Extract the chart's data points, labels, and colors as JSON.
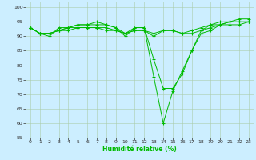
{
  "title": "",
  "xlabel": "Humidité relative (%)",
  "ylabel": "",
  "background_color": "#cceeff",
  "grid_color": "#aaccaa",
  "line_color": "#00bb00",
  "marker": "+",
  "xlim": [
    -0.5,
    23.5
  ],
  "ylim": [
    55,
    102
  ],
  "yticks": [
    55,
    60,
    65,
    70,
    75,
    80,
    85,
    90,
    95,
    100
  ],
  "xticks": [
    0,
    1,
    2,
    3,
    4,
    5,
    6,
    7,
    8,
    9,
    10,
    11,
    12,
    13,
    14,
    15,
    16,
    17,
    18,
    19,
    20,
    21,
    22,
    23
  ],
  "series": [
    [
      93,
      91,
      90,
      93,
      93,
      94,
      94,
      94,
      94,
      93,
      90,
      93,
      93,
      76,
      60,
      71,
      78,
      85,
      91,
      92,
      94,
      95,
      96,
      96
    ],
    [
      93,
      91,
      91,
      92,
      93,
      94,
      94,
      95,
      94,
      93,
      91,
      93,
      93,
      82,
      72,
      72,
      77,
      85,
      92,
      94,
      95,
      95,
      95,
      95
    ],
    [
      93,
      91,
      91,
      92,
      93,
      93,
      93,
      93,
      93,
      92,
      91,
      92,
      92,
      90,
      92,
      92,
      91,
      92,
      93,
      94,
      94,
      95,
      95,
      95
    ],
    [
      93,
      91,
      91,
      92,
      92,
      93,
      93,
      93,
      92,
      92,
      91,
      92,
      92,
      91,
      92,
      92,
      91,
      91,
      92,
      93,
      94,
      94,
      94,
      95
    ]
  ]
}
